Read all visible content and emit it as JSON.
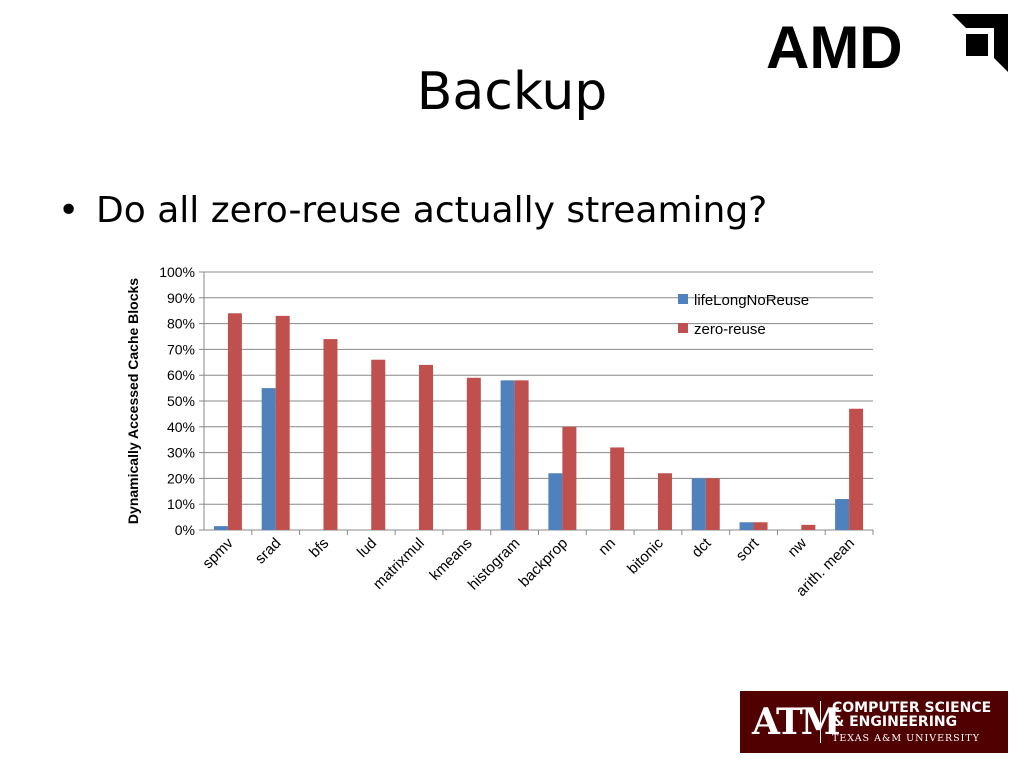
{
  "slide": {
    "title": "Backup",
    "bullet": "Do all zero-reuse actually streaming?"
  },
  "logos": {
    "amd": "AMD",
    "tamu_mark": "ATM",
    "tamu_line1": "COMPUTER SCIENCE",
    "tamu_line2": "& ENGINEERING",
    "tamu_line3": "TEXAS A&M UNIVERSITY"
  },
  "chart_data": {
    "type": "bar",
    "title": "",
    "xlabel": "",
    "ylabel": "Dynamically Accessed Cache Blocks",
    "ylim": [
      0,
      100
    ],
    "yticks": [
      "0%",
      "10%",
      "20%",
      "30%",
      "40%",
      "50%",
      "60%",
      "70%",
      "80%",
      "90%",
      "100%"
    ],
    "grid": true,
    "legend_position": "top-right",
    "categories": [
      "spmv",
      "srad",
      "bfs",
      "lud",
      "matrixmul",
      "kmeans",
      "histogram",
      "backprop",
      "nn",
      "bitonic",
      "dct",
      "sort",
      "nw",
      "arith. mean"
    ],
    "series": [
      {
        "name": "lifeLongNoReuse",
        "color": "#4f81bd",
        "values": [
          1.5,
          55,
          0,
          0,
          0,
          0,
          58,
          22,
          0,
          0,
          20,
          3,
          0,
          12
        ]
      },
      {
        "name": "zero-reuse",
        "color": "#c0504d",
        "values": [
          84,
          83,
          74,
          66,
          64,
          59,
          58,
          40,
          32,
          22,
          20,
          3,
          2,
          47
        ]
      }
    ]
  }
}
